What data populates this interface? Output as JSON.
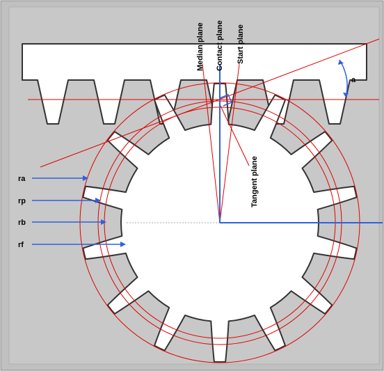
{
  "colors": {
    "background": "#c0c0c0",
    "gear_fill": "#ffffff",
    "outline": "#333333",
    "circle": "#e00000",
    "arrow": "#2f5fe0"
  },
  "labels": {
    "median_plane": "Median plane",
    "contact_plane": "Contact plane",
    "start_plane": "Start plane",
    "tangent_plane": "Tangent plane",
    "angle": "a",
    "ra": "ra",
    "rp": "rp",
    "rb": "rb",
    "rf": "rf"
  },
  "gear": {
    "teeth": 14
  }
}
